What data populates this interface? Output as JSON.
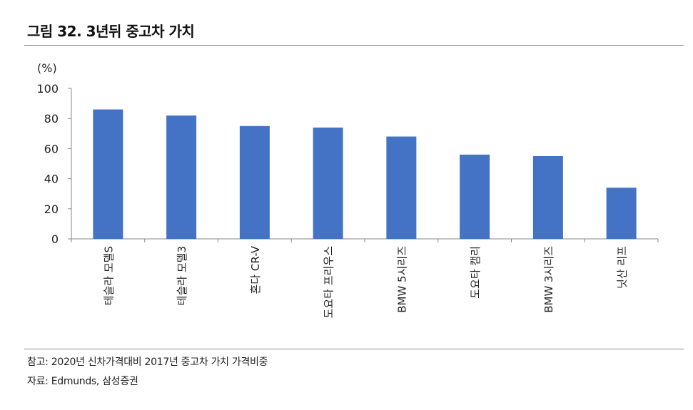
{
  "title": "그림 32.   3년뒤 중고차 가치",
  "notes": {
    "note": "참고: 2020년 신차가격대비 2017년 중고차 가치 가격비중",
    "source": "자료: Edmunds, 삼성증권"
  },
  "colors": {
    "bar": "#4472C4"
  },
  "chart_data": {
    "type": "bar",
    "title": "3년뒤 중고차 가치",
    "ylabel": "(%)",
    "xlabel": "",
    "ylim": [
      0,
      100
    ],
    "yticks": [
      0,
      20,
      40,
      60,
      80,
      100
    ],
    "grid": false,
    "categories": [
      "테슬라 모델S",
      "테슬라 모델3",
      "혼다 CR-V",
      "도요타 프리우스",
      "BMW 5시리즈",
      "도요타 캠리",
      "BMW 3시리즈",
      "닛산 리프"
    ],
    "values": [
      86,
      82,
      75,
      74,
      68,
      56,
      55,
      34
    ]
  }
}
